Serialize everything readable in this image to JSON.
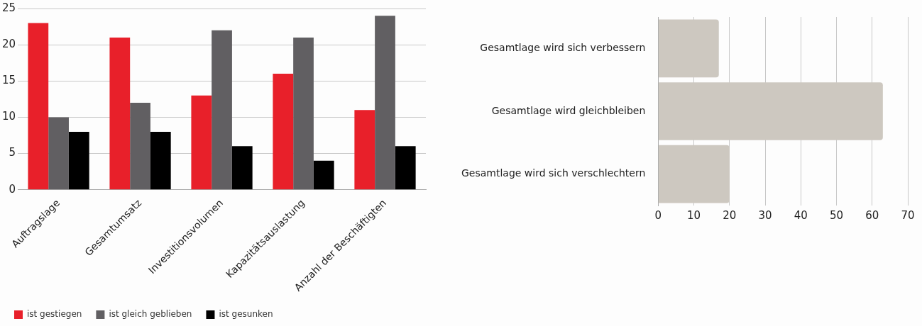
{
  "chart_data": [
    {
      "type": "bar",
      "categories": [
        "Auftragslage",
        "Gesamtumsatz",
        "Investitionsvolumen",
        "Kapazitätsauslastung",
        "Anzahl der Beschäftigten"
      ],
      "series": [
        {
          "name": "ist gestiegen",
          "color": "#e8202a",
          "values": [
            23,
            21,
            13,
            16,
            11
          ]
        },
        {
          "name": "ist gleich geblieben",
          "color": "#615f62",
          "values": [
            10,
            12,
            22,
            21,
            24
          ]
        },
        {
          "name": "ist gesunken",
          "color": "#000000",
          "values": [
            8,
            8,
            6,
            4,
            6
          ]
        }
      ],
      "ylim": [
        0,
        25
      ],
      "yticks": [
        0,
        5,
        10,
        15,
        20,
        25
      ],
      "grid": "y",
      "legend": "bottom left"
    },
    {
      "type": "bar",
      "orientation": "horizontal",
      "categories": [
        "Gesamtlage wird sich verbessern",
        "Gesamtlage wird gleichbleiben",
        "Gesamtlage wird sich verschlechtern"
      ],
      "values": [
        17,
        63,
        20
      ],
      "color": "#cdc8c0",
      "xlim": [
        0,
        70
      ],
      "xticks": [
        0,
        10,
        20,
        30,
        40,
        50,
        60,
        70
      ],
      "grid": "x"
    }
  ]
}
